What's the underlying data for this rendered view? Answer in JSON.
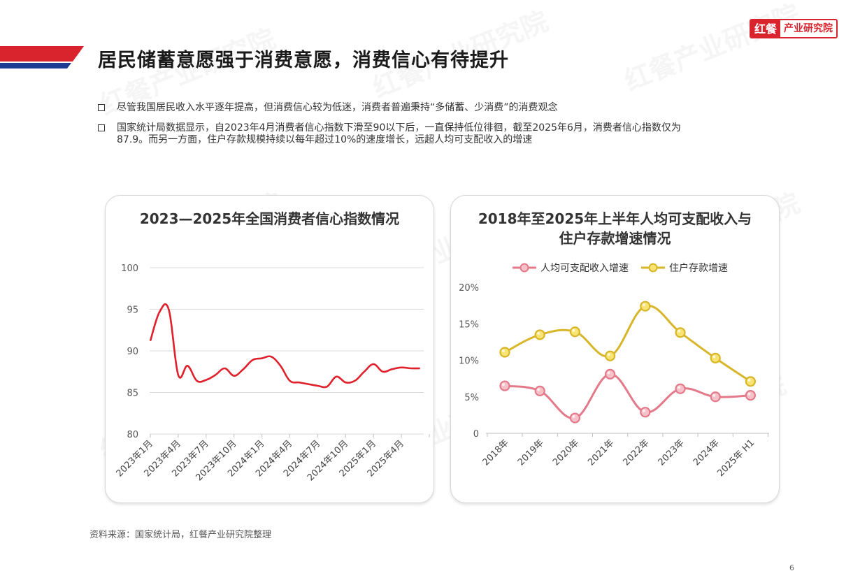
{
  "header": {
    "title": "居民储蓄意愿强于消费意愿，消费信心有待提升",
    "logo_red": "红餐",
    "logo_white": "产业研究院"
  },
  "bullets": [
    "尽管我国居民收入水平逐年提高，但消费信心较为低迷，消费者普遍秉持“多储蓄、少消费”的消费观念",
    "国家统计局数据显示，自2023年4月消费者信心指数下滑至90以下后，一直保持低位徘徊，截至2025年6月，消费者信心指数仅为",
    "87.9。而另一方面，住户存款规模持续以每年超过10%的速度增长，远超人均可支配收入的增速"
  ],
  "watermark": "红餐产业研究院",
  "colors": {
    "accent_red": "#d9232d",
    "accent_blue": "#1f3a93",
    "income_line": "#e4798a",
    "income_fill": "#f6c1c8",
    "deposit_line": "#d8b62a",
    "deposit_fill": "#f8e373"
  },
  "chart_data": [
    {
      "type": "line",
      "title": "2023—2025年全国消费者信心指数情况",
      "xlabel": "",
      "ylabel": "",
      "ylim": [
        80,
        100
      ],
      "yticks": [
        "80",
        "85",
        "90",
        "95",
        "100"
      ],
      "xtick_labels": [
        "2023年1月",
        "2023年4月",
        "2023年7月",
        "2023年10月",
        "2024年1月",
        "2024年4月",
        "2024年7月",
        "2024年10月",
        "2025年1月",
        "2025年4月"
      ],
      "grid": true,
      "series": [
        {
          "name": "",
          "color": "#e0202a",
          "x": [
            "2023-01",
            "2023-02",
            "2023-03",
            "2023-04",
            "2023-05",
            "2023-06",
            "2023-07",
            "2023-08",
            "2023-09",
            "2023-10",
            "2023-11",
            "2023-12",
            "2024-01",
            "2024-02",
            "2024-03",
            "2024-04",
            "2024-05",
            "2024-06",
            "2024-07",
            "2024-08",
            "2024-09",
            "2024-10",
            "2024-11",
            "2024-12",
            "2025-01",
            "2025-02",
            "2025-03",
            "2025-04",
            "2025-05",
            "2025-06"
          ],
          "values": [
            91.2,
            94.7,
            94.9,
            87.1,
            88.2,
            86.4,
            86.5,
            87.1,
            87.9,
            87.0,
            87.8,
            88.9,
            89.1,
            89.3,
            88.2,
            86.4,
            86.2,
            86.0,
            85.8,
            85.7,
            86.9,
            86.2,
            86.4,
            87.5,
            88.4,
            87.5,
            87.8,
            88.0,
            87.9,
            87.9
          ]
        }
      ]
    },
    {
      "type": "line",
      "title": "2018年至2025年上半年人均可支配收入与住户存款增速情况",
      "title_lines": [
        "2018年至2025年上半年人均可支配收入与",
        "住户存款增速情况"
      ],
      "xlabel": "",
      "ylabel": "",
      "ylim": [
        0,
        20
      ],
      "yticks": [
        "0",
        "5%",
        "10%",
        "15%",
        "20%"
      ],
      "categories": [
        "2018年",
        "2019年",
        "2020年",
        "2021年",
        "2022年",
        "2023年",
        "2024年",
        "2025年 H1"
      ],
      "legend": "top",
      "grid": false,
      "series": [
        {
          "name": "人均可支配收入增速",
          "values": [
            6.5,
            5.8,
            2.1,
            8.1,
            2.9,
            6.1,
            5.0,
            5.2
          ]
        },
        {
          "name": "住户存款增速",
          "values": [
            11.1,
            13.5,
            13.9,
            10.6,
            17.4,
            13.8,
            10.3,
            7.1
          ]
        }
      ]
    }
  ],
  "footer": {
    "source": "资料来源：国家统计局，红餐产业研究院整理",
    "page": "6"
  }
}
